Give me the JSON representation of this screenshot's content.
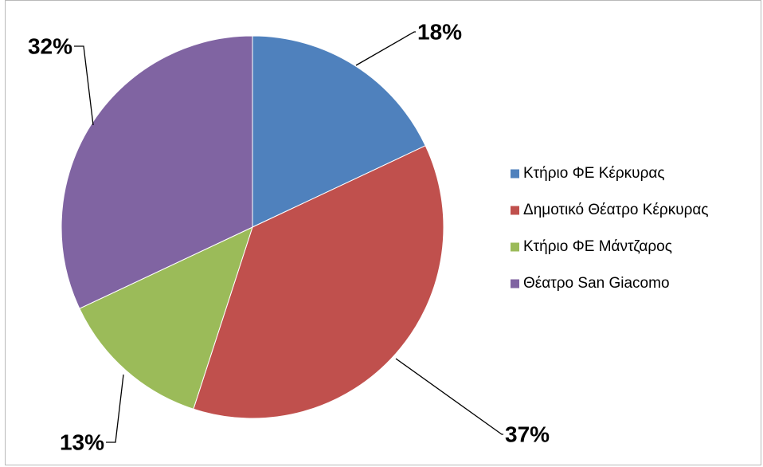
{
  "chart_data": {
    "type": "pie",
    "categories": [
      "Κτήριο ΦΕ Κέρκυρας",
      "Δημοτικό Θέατρο Κέρκυρας",
      "Κτήριο ΦΕ Μάντζαρος",
      "Θέατρο San Giacomo"
    ],
    "values": [
      18,
      37,
      13,
      32
    ],
    "value_labels": [
      "18%",
      "37%",
      "13%",
      "32%"
    ],
    "colors": [
      "#4f81bd",
      "#c0504d",
      "#9bbb59",
      "#8064a2"
    ],
    "legend_position": "right",
    "start_angle": "12 o'clock",
    "direction": "clockwise"
  }
}
